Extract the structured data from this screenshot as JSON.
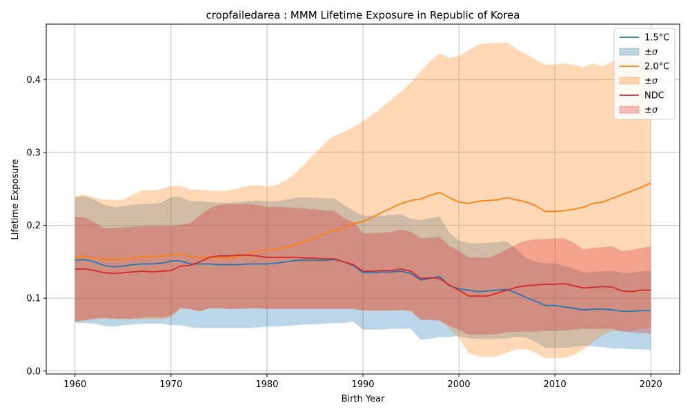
{
  "chart_data": {
    "type": "line",
    "title": "cropfailedarea : MMM Lifetime Exposure in Republic of Korea",
    "xlabel": "Birth Year",
    "ylabel": "Lifetime Exposure",
    "xlim": [
      1957,
      2023
    ],
    "ylim": [
      -0.004,
      0.476
    ],
    "xticks": [
      1960,
      1970,
      1980,
      1990,
      2000,
      2010,
      2020
    ],
    "yticks": [
      0.0,
      0.1,
      0.2,
      0.3,
      0.4
    ],
    "ytick_labels": [
      "0.0",
      "0.1",
      "0.2",
      "0.3",
      "0.4"
    ],
    "grid": true,
    "legend_position": "top-right",
    "x": [
      1960,
      1961,
      1962,
      1963,
      1964,
      1965,
      1966,
      1967,
      1968,
      1969,
      1970,
      1971,
      1972,
      1973,
      1974,
      1975,
      1976,
      1977,
      1978,
      1979,
      1980,
      1981,
      1982,
      1983,
      1984,
      1985,
      1986,
      1987,
      1988,
      1989,
      1990,
      1991,
      1992,
      1993,
      1994,
      1995,
      1996,
      1997,
      1998,
      1999,
      2000,
      2001,
      2002,
      2003,
      2004,
      2005,
      2006,
      2007,
      2008,
      2009,
      2010,
      2011,
      2012,
      2013,
      2014,
      2015,
      2016,
      2017,
      2018,
      2019,
      2020
    ],
    "series": [
      {
        "name": "1.5°C",
        "band_label": "±σ",
        "color": "#1f77b4",
        "band_color": "#1f77b4",
        "values": [
          0.152,
          0.153,
          0.15,
          0.145,
          0.143,
          0.144,
          0.146,
          0.147,
          0.147,
          0.148,
          0.151,
          0.151,
          0.147,
          0.147,
          0.147,
          0.146,
          0.146,
          0.146,
          0.147,
          0.147,
          0.147,
          0.148,
          0.15,
          0.152,
          0.152,
          0.152,
          0.152,
          0.153,
          0.15,
          0.145,
          0.135,
          0.135,
          0.136,
          0.136,
          0.137,
          0.134,
          0.125,
          0.127,
          0.13,
          0.117,
          0.113,
          0.111,
          0.109,
          0.11,
          0.111,
          0.112,
          0.107,
          0.101,
          0.096,
          0.09,
          0.09,
          0.088,
          0.086,
          0.084,
          0.085,
          0.085,
          0.084,
          0.082,
          0.082,
          0.083,
          0.083
        ],
        "lower": [
          0.066,
          0.066,
          0.065,
          0.062,
          0.061,
          0.063,
          0.064,
          0.065,
          0.065,
          0.065,
          0.063,
          0.063,
          0.06,
          0.059,
          0.059,
          0.059,
          0.059,
          0.059,
          0.059,
          0.06,
          0.061,
          0.061,
          0.062,
          0.063,
          0.064,
          0.064,
          0.065,
          0.066,
          0.066,
          0.068,
          0.057,
          0.057,
          0.057,
          0.058,
          0.058,
          0.058,
          0.043,
          0.044,
          0.047,
          0.047,
          0.048,
          0.045,
          0.044,
          0.044,
          0.044,
          0.045,
          0.047,
          0.046,
          0.04,
          0.032,
          0.032,
          0.032,
          0.033,
          0.035,
          0.034,
          0.033,
          0.031,
          0.031,
          0.03,
          0.03,
          0.029
        ],
        "upper": [
          0.238,
          0.24,
          0.235,
          0.228,
          0.225,
          0.226,
          0.228,
          0.229,
          0.23,
          0.231,
          0.239,
          0.239,
          0.233,
          0.233,
          0.232,
          0.231,
          0.231,
          0.232,
          0.233,
          0.234,
          0.233,
          0.233,
          0.235,
          0.238,
          0.238,
          0.238,
          0.237,
          0.237,
          0.228,
          0.22,
          0.213,
          0.213,
          0.213,
          0.214,
          0.215,
          0.209,
          0.207,
          0.21,
          0.212,
          0.19,
          0.179,
          0.176,
          0.175,
          0.176,
          0.177,
          0.178,
          0.167,
          0.155,
          0.15,
          0.148,
          0.148,
          0.144,
          0.14,
          0.135,
          0.136,
          0.137,
          0.138,
          0.134,
          0.135,
          0.137,
          0.138
        ]
      },
      {
        "name": "2.0°C",
        "band_label": "±σ",
        "color": "#ff7f0e",
        "band_color": "#ff7f0e",
        "values": [
          0.156,
          0.157,
          0.155,
          0.153,
          0.153,
          0.153,
          0.155,
          0.157,
          0.157,
          0.158,
          0.159,
          0.16,
          0.157,
          0.156,
          0.156,
          0.155,
          0.155,
          0.157,
          0.16,
          0.164,
          0.166,
          0.167,
          0.17,
          0.174,
          0.178,
          0.183,
          0.188,
          0.193,
          0.196,
          0.202,
          0.205,
          0.211,
          0.218,
          0.224,
          0.23,
          0.234,
          0.236,
          0.241,
          0.245,
          0.238,
          0.232,
          0.23,
          0.233,
          0.234,
          0.235,
          0.238,
          0.235,
          0.232,
          0.227,
          0.219,
          0.219,
          0.22,
          0.222,
          0.225,
          0.23,
          0.232,
          0.237,
          0.242,
          0.247,
          0.252,
          0.258
        ],
        "lower": [
          0.069,
          0.069,
          0.071,
          0.072,
          0.071,
          0.071,
          0.071,
          0.071,
          0.071,
          0.071,
          0.074,
          0.086,
          0.085,
          0.082,
          0.086,
          0.086,
          0.086,
          0.086,
          0.086,
          0.086,
          0.086,
          0.086,
          0.086,
          0.086,
          0.086,
          0.086,
          0.086,
          0.086,
          0.086,
          0.086,
          0.083,
          0.083,
          0.083,
          0.083,
          0.083,
          0.082,
          0.071,
          0.071,
          0.07,
          0.059,
          0.045,
          0.025,
          0.02,
          0.02,
          0.02,
          0.025,
          0.03,
          0.03,
          0.025,
          0.018,
          0.018,
          0.018,
          0.022,
          0.03,
          0.04,
          0.05,
          0.055,
          0.055,
          0.055,
          0.058,
          0.06
        ],
        "upper": [
          0.24,
          0.242,
          0.238,
          0.235,
          0.235,
          0.235,
          0.242,
          0.248,
          0.248,
          0.25,
          0.254,
          0.254,
          0.249,
          0.249,
          0.248,
          0.247,
          0.248,
          0.251,
          0.254,
          0.255,
          0.253,
          0.255,
          0.262,
          0.272,
          0.285,
          0.299,
          0.313,
          0.323,
          0.328,
          0.335,
          0.343,
          0.352,
          0.362,
          0.373,
          0.384,
          0.396,
          0.411,
          0.425,
          0.436,
          0.43,
          0.432,
          0.44,
          0.448,
          0.45,
          0.45,
          0.451,
          0.442,
          0.435,
          0.427,
          0.42,
          0.421,
          0.422,
          0.42,
          0.417,
          0.422,
          0.418,
          0.425,
          0.438,
          0.443,
          0.45,
          0.453
        ]
      },
      {
        "name": "NDC",
        "band_label": "±σ",
        "color": "#d62728",
        "band_color": "#d62728",
        "values": [
          0.14,
          0.14,
          0.138,
          0.135,
          0.134,
          0.135,
          0.136,
          0.137,
          0.136,
          0.137,
          0.138,
          0.144,
          0.145,
          0.15,
          0.156,
          0.158,
          0.158,
          0.159,
          0.159,
          0.158,
          0.156,
          0.156,
          0.156,
          0.156,
          0.155,
          0.155,
          0.154,
          0.154,
          0.15,
          0.146,
          0.137,
          0.137,
          0.138,
          0.138,
          0.14,
          0.137,
          0.127,
          0.128,
          0.127,
          0.118,
          0.111,
          0.103,
          0.103,
          0.103,
          0.107,
          0.111,
          0.115,
          0.117,
          0.118,
          0.119,
          0.119,
          0.12,
          0.117,
          0.114,
          0.115,
          0.116,
          0.115,
          0.11,
          0.109,
          0.111,
          0.111
        ],
        "lower": [
          0.068,
          0.07,
          0.072,
          0.073,
          0.072,
          0.072,
          0.072,
          0.073,
          0.074,
          0.073,
          0.076,
          0.087,
          0.085,
          0.082,
          0.086,
          0.086,
          0.085,
          0.085,
          0.086,
          0.086,
          0.085,
          0.085,
          0.085,
          0.085,
          0.085,
          0.085,
          0.085,
          0.085,
          0.085,
          0.085,
          0.083,
          0.083,
          0.083,
          0.083,
          0.084,
          0.083,
          0.07,
          0.07,
          0.069,
          0.062,
          0.057,
          0.05,
          0.05,
          0.05,
          0.051,
          0.053,
          0.054,
          0.054,
          0.054,
          0.055,
          0.055,
          0.056,
          0.057,
          0.058,
          0.058,
          0.058,
          0.058,
          0.054,
          0.053,
          0.052,
          0.051
        ],
        "upper": [
          0.211,
          0.211,
          0.204,
          0.196,
          0.196,
          0.197,
          0.198,
          0.199,
          0.199,
          0.199,
          0.199,
          0.201,
          0.203,
          0.213,
          0.223,
          0.228,
          0.229,
          0.229,
          0.229,
          0.228,
          0.225,
          0.225,
          0.225,
          0.224,
          0.223,
          0.222,
          0.22,
          0.22,
          0.21,
          0.205,
          0.189,
          0.189,
          0.19,
          0.191,
          0.194,
          0.191,
          0.182,
          0.183,
          0.184,
          0.172,
          0.165,
          0.156,
          0.156,
          0.155,
          0.16,
          0.167,
          0.174,
          0.179,
          0.181,
          0.181,
          0.182,
          0.182,
          0.176,
          0.167,
          0.169,
          0.17,
          0.171,
          0.165,
          0.166,
          0.169,
          0.171
        ]
      }
    ]
  }
}
